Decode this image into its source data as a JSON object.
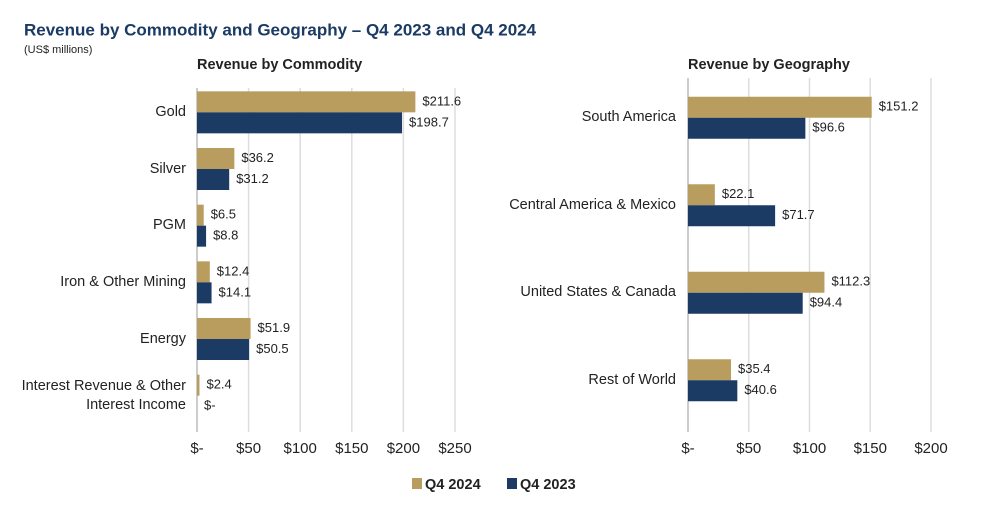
{
  "header": {
    "title": "Revenue by Commodity and Geography – Q4 2023 and Q4 2024",
    "subtitle": "(US$ millions)"
  },
  "chart_data": [
    {
      "type": "hbar",
      "title": "Revenue by Commodity",
      "categories": [
        "Gold",
        "Silver",
        "PGM",
        "Iron & Other Mining",
        "Energy",
        "Interest Revenue & Other Interest Income"
      ],
      "series": [
        {
          "name": "Q4 2024",
          "color": "#b89d5e",
          "values": [
            211.6,
            36.2,
            6.5,
            12.4,
            51.9,
            2.4
          ],
          "value_labels": [
            "$211.6",
            "$36.2",
            "$6.5",
            "$12.4",
            "$51.9",
            "$2.4"
          ]
        },
        {
          "name": "Q4 2023",
          "color": "#1b3a64",
          "values": [
            198.7,
            31.2,
            8.8,
            14.1,
            50.5,
            0
          ],
          "value_labels": [
            "$198.7",
            "$31.2",
            "$8.8",
            "$14.1",
            "$50.5",
            "$-"
          ]
        }
      ],
      "xlim": [
        0,
        250
      ],
      "xticks": [
        {
          "value": 0,
          "label": "$-"
        },
        {
          "value": 50,
          "label": "$50"
        },
        {
          "value": 100,
          "label": "$100"
        },
        {
          "value": 150,
          "label": "$150"
        },
        {
          "value": 200,
          "label": "$200"
        },
        {
          "value": 250,
          "label": "$250"
        }
      ],
      "grid": true
    },
    {
      "type": "hbar",
      "title": "Revenue by Geography",
      "categories": [
        "South America",
        "Central America & Mexico",
        "United States & Canada",
        "Rest of World"
      ],
      "series": [
        {
          "color": "#b89d5e",
          "values": [
            151.2,
            22.1,
            112.3,
            35.4
          ],
          "value_labels": [
            "$151.2",
            "$22.1",
            "$112.3",
            "$35.4"
          ]
        },
        {
          "color": "#1b3a64",
          "values": [
            96.6,
            71.7,
            94.4,
            40.6
          ],
          "value_labels": [
            "$96.6",
            "$71.7",
            "$94.4",
            "$40.6"
          ]
        }
      ],
      "xlim": [
        0,
        200
      ],
      "xticks": [
        {
          "value": 0,
          "label": "$-"
        },
        {
          "value": 50,
          "label": "$50"
        },
        {
          "value": 100,
          "label": "$100"
        },
        {
          "value": 150,
          "label": "$150"
        },
        {
          "value": 200,
          "label": "$200"
        }
      ],
      "grid": true
    }
  ]
}
